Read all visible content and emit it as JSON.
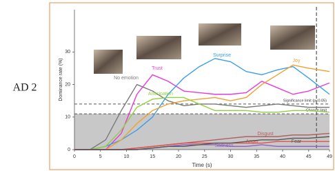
{
  "label": "AD 2",
  "chart_data": {
    "type": "line",
    "xlabel": "Time (s)",
    "ylabel": "Dominance rate (%)",
    "x": [
      0,
      3,
      6,
      9,
      12,
      15,
      18,
      21,
      24,
      27,
      30,
      33,
      36,
      39,
      42,
      45,
      49
    ],
    "xlim": [
      0,
      49
    ],
    "xticks": [
      0,
      5,
      10,
      15,
      20,
      25,
      30,
      35,
      40,
      45,
      49
    ],
    "ylim": [
      0,
      43
    ],
    "yticks": [
      0,
      10,
      20,
      30
    ],
    "series": [
      {
        "name": "No emotion",
        "color": "#7a7a7a",
        "values": [
          0,
          0,
          3,
          12,
          20,
          18,
          15,
          13.5,
          14,
          14,
          13.5,
          13,
          13.5,
          14,
          13.5,
          13,
          13
        ]
      },
      {
        "name": "Trust",
        "color": "#e83ad8",
        "values": [
          0,
          0,
          0,
          5,
          17,
          23,
          21,
          18,
          17.5,
          17,
          17,
          17.5,
          21,
          19,
          17,
          18,
          20.5
        ]
      },
      {
        "name": "Surprise",
        "color": "#3a9ee8",
        "values": [
          0,
          0,
          1,
          3,
          6,
          10,
          17,
          22,
          25.5,
          28,
          27,
          24,
          23,
          24.5,
          25.5,
          22,
          17
        ]
      },
      {
        "name": "Joy",
        "color": "#f0a030",
        "values": [
          0,
          0,
          0,
          3,
          8,
          12,
          14,
          15,
          15.5,
          16,
          15,
          16,
          20,
          23,
          26,
          25,
          24
        ]
      },
      {
        "name": "Anticipation",
        "color": "#8fd040",
        "values": [
          0,
          0,
          1,
          6,
          13,
          15.5,
          16,
          16,
          14,
          12,
          12,
          12,
          11.5,
          11.5,
          12,
          12,
          11.5
        ]
      },
      {
        "name": "Disgust",
        "color": "#b06060",
        "values": [
          0,
          0,
          0,
          0,
          0.5,
          1,
          1.5,
          2,
          2.5,
          3,
          3.5,
          4,
          4,
          4,
          4.5,
          4.5,
          5
        ]
      },
      {
        "name": "Sadness",
        "color": "#9060c0",
        "values": [
          0,
          0,
          0,
          0,
          0,
          0.5,
          1,
          1.5,
          1.5,
          1.5,
          1,
          1,
          1.5,
          1,
          1,
          1,
          1
        ]
      },
      {
        "name": "Anger",
        "color": "#e05050",
        "values": [
          0,
          0,
          0,
          0,
          0.5,
          1,
          1.5,
          2,
          2,
          2,
          2,
          2,
          2,
          2.5,
          2.5,
          2.5,
          2.5
        ]
      },
      {
        "name": "Fear",
        "color": "#555555",
        "values": [
          0,
          0,
          0,
          0,
          0,
          0.5,
          1,
          1,
          1.5,
          2,
          2,
          2.5,
          3,
          3,
          3.5,
          3.5,
          4
        ]
      }
    ],
    "reference_lines": [
      {
        "label": "Significance limit (p<0.05)",
        "value": 14
      },
      {
        "label": "Chance limit",
        "value": 11
      }
    ],
    "vline_x": 46.5
  }
}
